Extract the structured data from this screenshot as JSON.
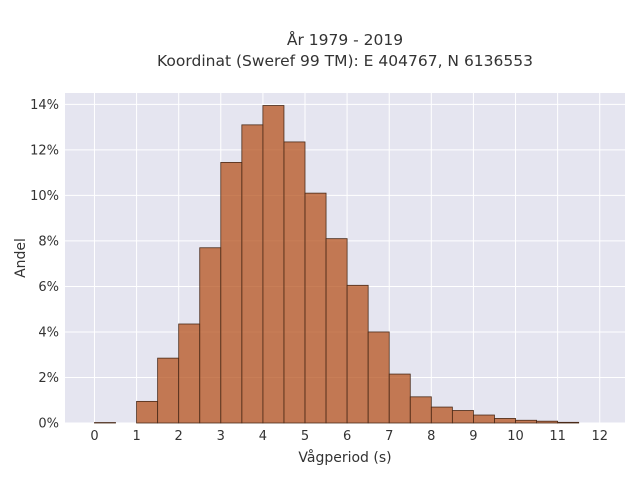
{
  "chart_data": {
    "type": "bar",
    "title": "År 1979 - 2019",
    "subtitle": "Koordinat (Sweref 99 TM): E 404767, N 6136553",
    "xlabel": "Vågperiod (s)",
    "ylabel": "Andel",
    "xlim": [
      -0.7,
      12.6
    ],
    "ylim": [
      0,
      14.5
    ],
    "x_ticks": [
      0,
      1,
      2,
      3,
      4,
      5,
      6,
      7,
      8,
      9,
      10,
      11,
      12
    ],
    "y_ticks": [
      0,
      2,
      4,
      6,
      8,
      10,
      12,
      14
    ],
    "y_tick_labels": [
      "0%",
      "2%",
      "4%",
      "6%",
      "8%",
      "10%",
      "12%",
      "14%"
    ],
    "bin_width": 0.5,
    "bins": [
      {
        "x0": 0.0,
        "x1": 0.5,
        "value": 0.02
      },
      {
        "x0": 0.5,
        "x1": 1.0,
        "value": 0.0
      },
      {
        "x0": 1.0,
        "x1": 1.5,
        "value": 0.95
      },
      {
        "x0": 1.5,
        "x1": 2.0,
        "value": 2.85
      },
      {
        "x0": 2.0,
        "x1": 2.5,
        "value": 4.35
      },
      {
        "x0": 2.5,
        "x1": 3.0,
        "value": 7.7
      },
      {
        "x0": 3.0,
        "x1": 3.5,
        "value": 11.45
      },
      {
        "x0": 3.5,
        "x1": 4.0,
        "value": 13.1
      },
      {
        "x0": 4.0,
        "x1": 4.5,
        "value": 13.95
      },
      {
        "x0": 4.5,
        "x1": 5.0,
        "value": 12.35
      },
      {
        "x0": 5.0,
        "x1": 5.5,
        "value": 10.1
      },
      {
        "x0": 5.5,
        "x1": 6.0,
        "value": 8.1
      },
      {
        "x0": 6.0,
        "x1": 6.5,
        "value": 6.05
      },
      {
        "x0": 6.5,
        "x1": 7.0,
        "value": 4.0
      },
      {
        "x0": 7.0,
        "x1": 7.5,
        "value": 2.15
      },
      {
        "x0": 7.5,
        "x1": 8.0,
        "value": 1.15
      },
      {
        "x0": 8.0,
        "x1": 8.5,
        "value": 0.7
      },
      {
        "x0": 8.5,
        "x1": 9.0,
        "value": 0.55
      },
      {
        "x0": 9.0,
        "x1": 9.5,
        "value": 0.35
      },
      {
        "x0": 9.5,
        "x1": 10.0,
        "value": 0.2
      },
      {
        "x0": 10.0,
        "x1": 10.5,
        "value": 0.12
      },
      {
        "x0": 10.5,
        "x1": 11.0,
        "value": 0.08
      },
      {
        "x0": 11.0,
        "x1": 11.5,
        "value": 0.03
      },
      {
        "x0": 11.5,
        "x1": 12.0,
        "value": 0.0
      }
    ],
    "grid": true,
    "legend": "none",
    "colors": {
      "bar_fill": "#b5531f",
      "bar_edge": "#4a2a18",
      "plot_background": "#e5e5f0",
      "grid": "#ffffff"
    }
  }
}
